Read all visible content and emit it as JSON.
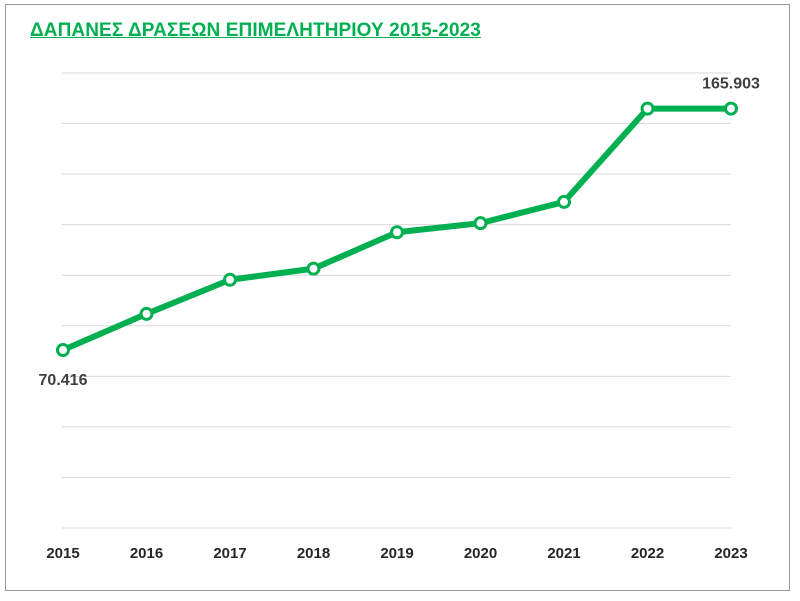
{
  "chart_data": {
    "type": "line",
    "title": "ΔΑΠΑΝΕΣ ΔΡΑΣΕΩΝ ΕΠΙΜΕΛΗΤΗΡΙΟΥ 2015-2023",
    "categories": [
      "2015",
      "2016",
      "2017",
      "2018",
      "2019",
      "2020",
      "2021",
      "2022",
      "2023"
    ],
    "series": [
      {
        "values": [
          70416,
          84700,
          98200,
          102600,
          117000,
          120600,
          129000,
          165903,
          165903
        ],
        "color": "#00b050"
      }
    ],
    "data_labels": [
      {
        "index": 0,
        "text": "70.416",
        "position": "below"
      },
      {
        "index": 8,
        "text": "165.903",
        "position": "above"
      }
    ],
    "ylim": [
      0,
      180000
    ],
    "grid": true,
    "legend": "none",
    "marker": "hollow-circle",
    "colors": {
      "line": "#00b050",
      "title": "#00b050",
      "grid": "#d9d9d9",
      "axis_text": "#262626"
    }
  }
}
